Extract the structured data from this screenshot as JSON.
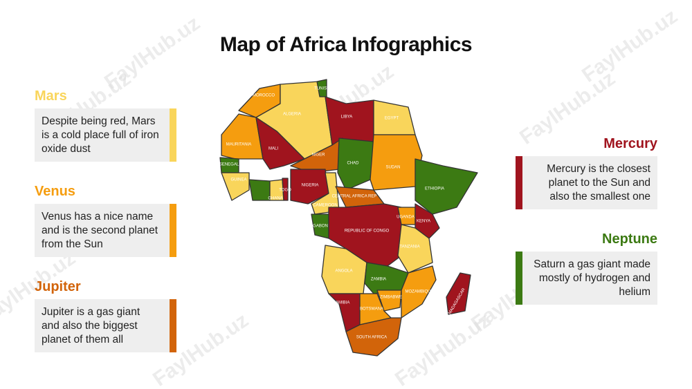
{
  "title": "Map of Africa Infographics",
  "watermark": "FaylHub.uz",
  "left_cards": [
    {
      "title": "Mars",
      "text": "Despite being red, Mars is a cold place full of iron oxide dust"
    },
    {
      "title": "Venus",
      "text": "Venus has a nice name and is the second planet from the Sun"
    },
    {
      "title": "Jupiter",
      "text": "Jupiter is a gas giant and also the biggest planet of them all"
    }
  ],
  "right_cards": [
    {
      "title": "Mercury",
      "text": "Mercury is the closest planet to the Sun and also the smallest one"
    },
    {
      "title": "Neptune",
      "text": "Saturn a gas giant made mostly of hydrogen and helium"
    }
  ],
  "map_labels": [
    "MOROCCO",
    "ALGERIA",
    "TUNISIA",
    "LIBYA",
    "EGYPT",
    "MAURITANIA",
    "MALI",
    "NIGER",
    "CHAD",
    "SUDAN",
    "ETHIOPIA",
    "SENEGAL",
    "GUINEA",
    "GHANA",
    "TOGO",
    "NIGERIA",
    "CAMEROON",
    "CENTRAL AFRICA REP",
    "GABON",
    "REPUBLIC OF CONGO",
    "UGANDA",
    "KENYA",
    "TANZANIA",
    "ANGOLA",
    "ZAMBIA",
    "ZIMBABWE",
    "MOZAMBIQUE",
    "NAMIBIA",
    "BOTSWANA",
    "SOUTH AFRICA",
    "MADAGASCAR"
  ]
}
